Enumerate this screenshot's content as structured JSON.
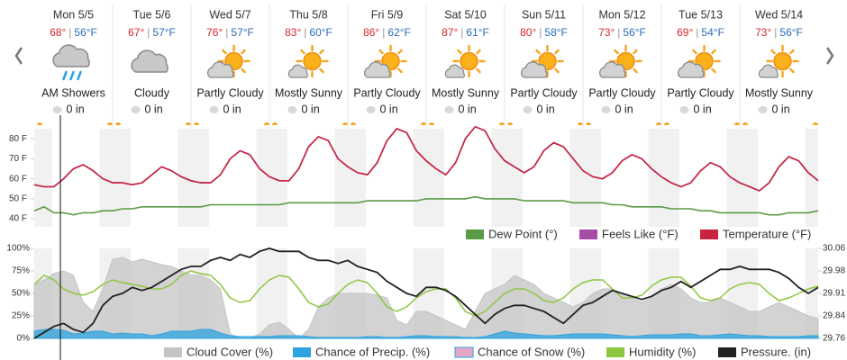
{
  "days": [
    {
      "date": "Mon 5/5",
      "high": "68°",
      "low": "56°F",
      "condition": "AM Showers",
      "precip": "0 in"
    },
    {
      "date": "Tue 5/6",
      "high": "67°",
      "low": "57°F",
      "condition": "Cloudy",
      "precip": "0 in"
    },
    {
      "date": "Wed 5/7",
      "high": "76°",
      "low": "57°F",
      "condition": "Partly Cloudy",
      "precip": "0 in"
    },
    {
      "date": "Thu 5/8",
      "high": "83°",
      "low": "60°F",
      "condition": "Mostly Sunny",
      "precip": "0 in"
    },
    {
      "date": "Fri 5/9",
      "high": "86°",
      "low": "62°F",
      "condition": "Partly Cloudy",
      "precip": "0 in"
    },
    {
      "date": "Sat 5/10",
      "high": "87°",
      "low": "61°F",
      "condition": "Mostly Sunny",
      "precip": "0 in"
    },
    {
      "date": "Sun 5/11",
      "high": "80°",
      "low": "58°F",
      "condition": "Partly Cloudy",
      "precip": "0 in"
    },
    {
      "date": "Mon 5/12",
      "high": "73°",
      "low": "56°F",
      "condition": "Partly Cloudy",
      "precip": "0 in"
    },
    {
      "date": "Tue 5/13",
      "high": "69°",
      "low": "54°F",
      "condition": "Partly Cloudy",
      "precip": "0 in"
    },
    {
      "date": "Wed 5/14",
      "high": "73°",
      "low": "56°F",
      "condition": "Mostly Sunny",
      "precip": "0 in"
    }
  ],
  "chart_data": [
    {
      "type": "line",
      "ylim": [
        36,
        85
      ],
      "yticks": [
        {
          "value": 40,
          "label": "40 F"
        },
        {
          "value": 50,
          "label": "50 F"
        },
        {
          "value": 60,
          "label": "60 F"
        },
        {
          "value": 70,
          "label": "70 F"
        },
        {
          "value": 80,
          "label": "80 F"
        }
      ],
      "legend": "bottom-right",
      "series": [
        {
          "name": "Dew Point (°)",
          "color": "#5b9a45",
          "values": [
            44,
            46,
            43,
            43,
            42,
            43,
            43,
            44,
            44,
            45,
            45,
            46,
            46,
            46,
            46,
            46,
            46,
            46,
            47,
            47,
            47,
            47,
            47,
            47,
            47,
            47,
            48,
            48,
            48,
            48,
            48,
            48,
            48,
            48,
            49,
            49,
            49,
            49,
            49,
            49,
            50,
            50,
            50,
            50,
            50,
            51,
            50,
            50,
            50,
            50,
            49,
            49,
            49,
            49,
            49,
            48,
            48,
            48,
            48,
            47,
            47,
            46,
            46,
            46,
            46,
            45,
            45,
            45,
            44,
            44,
            43,
            43,
            43,
            43,
            43,
            42,
            42,
            43,
            43,
            43,
            44
          ]
        },
        {
          "name": "Feels Like (°F)",
          "color": "#a64ca6",
          "values": [
            57,
            56,
            56,
            60,
            65,
            67,
            64,
            60,
            58,
            58,
            57,
            58,
            62,
            66,
            64,
            61,
            59,
            58,
            58,
            62,
            70,
            74,
            72,
            65,
            61,
            59,
            59,
            65,
            76,
            81,
            79,
            70,
            66,
            63,
            62,
            68,
            79,
            85,
            83,
            74,
            69,
            65,
            62,
            68,
            80,
            86,
            84,
            75,
            69,
            66,
            63,
            66,
            74,
            78,
            76,
            70,
            64,
            61,
            60,
            63,
            69,
            72,
            70,
            65,
            61,
            58,
            56,
            58,
            64,
            68,
            66,
            61,
            58,
            56,
            54,
            58,
            66,
            71,
            69,
            63,
            59
          ]
        },
        {
          "name": "Temperature (°F)",
          "color": "#c9243f",
          "values": [
            57,
            56,
            56,
            60,
            65,
            67,
            64,
            60,
            58,
            58,
            57,
            58,
            62,
            66,
            64,
            61,
            59,
            58,
            58,
            62,
            70,
            74,
            72,
            65,
            61,
            59,
            59,
            65,
            76,
            81,
            79,
            70,
            66,
            63,
            62,
            68,
            79,
            85,
            83,
            74,
            69,
            65,
            62,
            68,
            80,
            86,
            84,
            75,
            69,
            66,
            63,
            66,
            74,
            78,
            76,
            70,
            64,
            61,
            60,
            63,
            69,
            72,
            70,
            65,
            61,
            58,
            56,
            58,
            64,
            68,
            66,
            61,
            58,
            56,
            54,
            58,
            66,
            71,
            69,
            63,
            59
          ]
        }
      ]
    },
    {
      "type": "combo",
      "ylim": [
        0,
        100
      ],
      "yticks": [
        {
          "value": 0,
          "label": "0%"
        },
        {
          "value": 25,
          "label": "25%"
        },
        {
          "value": 50,
          "label": "50%"
        },
        {
          "value": 75,
          "label": "75%"
        },
        {
          "value": 100,
          "label": "100%"
        }
      ],
      "y2lim": [
        29.76,
        30.06
      ],
      "y2ticks": [
        29.76,
        {
          "value": 29.835,
          "label": "29.84"
        },
        29.91,
        {
          "value": 29.985,
          "label": "29.98"
        },
        30.06
      ],
      "legend": "bottom",
      "series": [
        {
          "name": "Cloud Cover (%)",
          "color": "#c4c4c4",
          "kind": "area",
          "values": [
            60,
            65,
            72,
            75,
            70,
            40,
            30,
            55,
            88,
            90,
            85,
            88,
            85,
            82,
            80,
            75,
            70,
            70,
            65,
            55,
            5,
            0,
            0,
            5,
            15,
            18,
            10,
            0,
            10,
            35,
            45,
            50,
            50,
            50,
            50,
            48,
            45,
            20,
            15,
            30,
            30,
            25,
            20,
            15,
            10,
            30,
            50,
            55,
            60,
            70,
            65,
            60,
            50,
            45,
            40,
            35,
            40,
            50,
            55,
            55,
            50,
            45,
            40,
            45,
            55,
            60,
            55,
            45,
            40,
            40,
            45,
            40,
            35,
            30,
            30,
            35,
            40,
            35,
            30,
            25,
            22
          ]
        },
        {
          "name": "Chance of Precip. (%)",
          "color": "#2ea3dd",
          "kind": "area",
          "values": [
            8,
            10,
            10,
            9,
            5,
            6,
            8,
            8,
            5,
            6,
            5,
            5,
            3,
            5,
            8,
            8,
            8,
            10,
            10,
            6,
            3,
            2,
            2,
            2,
            2,
            3,
            3,
            3,
            2,
            1,
            1,
            1,
            1,
            1,
            2,
            2,
            1,
            1,
            2,
            3,
            3,
            2,
            2,
            2,
            1,
            1,
            2,
            5,
            8,
            6,
            5,
            4,
            3,
            3,
            4,
            5,
            5,
            5,
            5,
            4,
            3,
            2,
            3,
            4,
            4,
            4,
            5,
            5,
            3,
            3,
            4,
            5,
            4,
            3,
            3,
            2,
            2,
            2,
            2,
            3,
            3
          ]
        },
        {
          "name": "Chance of Snow (%)",
          "color": "#e6a6c6",
          "kind": "area",
          "values": [
            0,
            0,
            0,
            0,
            0,
            0,
            0,
            0,
            0,
            0,
            0,
            0,
            0,
            0,
            0,
            0,
            0,
            0,
            0,
            0,
            0,
            0,
            0,
            0,
            0,
            0,
            0,
            0,
            0,
            0,
            0,
            0,
            0,
            0,
            0,
            0,
            0,
            0,
            0,
            0,
            0,
            0,
            0,
            0,
            0,
            0,
            0,
            0,
            0,
            0,
            0,
            0,
            0,
            0,
            0,
            0,
            0,
            0,
            0,
            0,
            0,
            0,
            0,
            0,
            0,
            0,
            0,
            0,
            0,
            0,
            0,
            0,
            0,
            0,
            0,
            0,
            0,
            0,
            0,
            0,
            0
          ]
        },
        {
          "name": "Humidity (%)",
          "color": "#8dc63f",
          "kind": "line",
          "values": [
            60,
            70,
            65,
            55,
            50,
            48,
            52,
            60,
            65,
            62,
            60,
            58,
            55,
            55,
            60,
            70,
            75,
            72,
            70,
            60,
            45,
            40,
            42,
            55,
            65,
            70,
            68,
            55,
            40,
            35,
            38,
            50,
            60,
            65,
            62,
            50,
            35,
            30,
            35,
            45,
            52,
            55,
            55,
            45,
            30,
            25,
            30,
            40,
            50,
            55,
            55,
            50,
            42,
            40,
            45,
            55,
            62,
            65,
            65,
            55,
            45,
            45,
            48,
            58,
            65,
            68,
            68,
            58,
            45,
            42,
            45,
            55,
            60,
            62,
            60,
            50,
            42,
            45,
            50,
            55,
            58
          ]
        },
        {
          "name": "Pressure. (in)",
          "color": "#222222",
          "kind": "line",
          "axis": "y2",
          "values": [
            29.76,
            29.78,
            29.8,
            29.81,
            29.79,
            29.78,
            29.81,
            29.87,
            29.9,
            29.91,
            29.93,
            29.92,
            29.93,
            29.95,
            29.97,
            29.99,
            30.0,
            30.0,
            30.02,
            30.03,
            30.02,
            30.04,
            30.03,
            30.05,
            30.06,
            30.05,
            30.05,
            30.05,
            30.03,
            30.02,
            30.02,
            30.01,
            30.02,
            30.0,
            29.99,
            29.98,
            29.95,
            29.93,
            29.91,
            29.9,
            29.93,
            29.93,
            29.92,
            29.9,
            29.87,
            29.84,
            29.81,
            29.84,
            29.86,
            29.87,
            29.87,
            29.86,
            29.85,
            29.83,
            29.81,
            29.84,
            29.87,
            29.88,
            29.9,
            29.92,
            29.91,
            29.9,
            29.89,
            29.9,
            29.92,
            29.93,
            29.95,
            29.93,
            29.95,
            29.97,
            29.99,
            29.99,
            30.0,
            29.99,
            29.99,
            29.99,
            29.98,
            29.96,
            29.93,
            29.91,
            29.93
          ]
        }
      ]
    }
  ]
}
